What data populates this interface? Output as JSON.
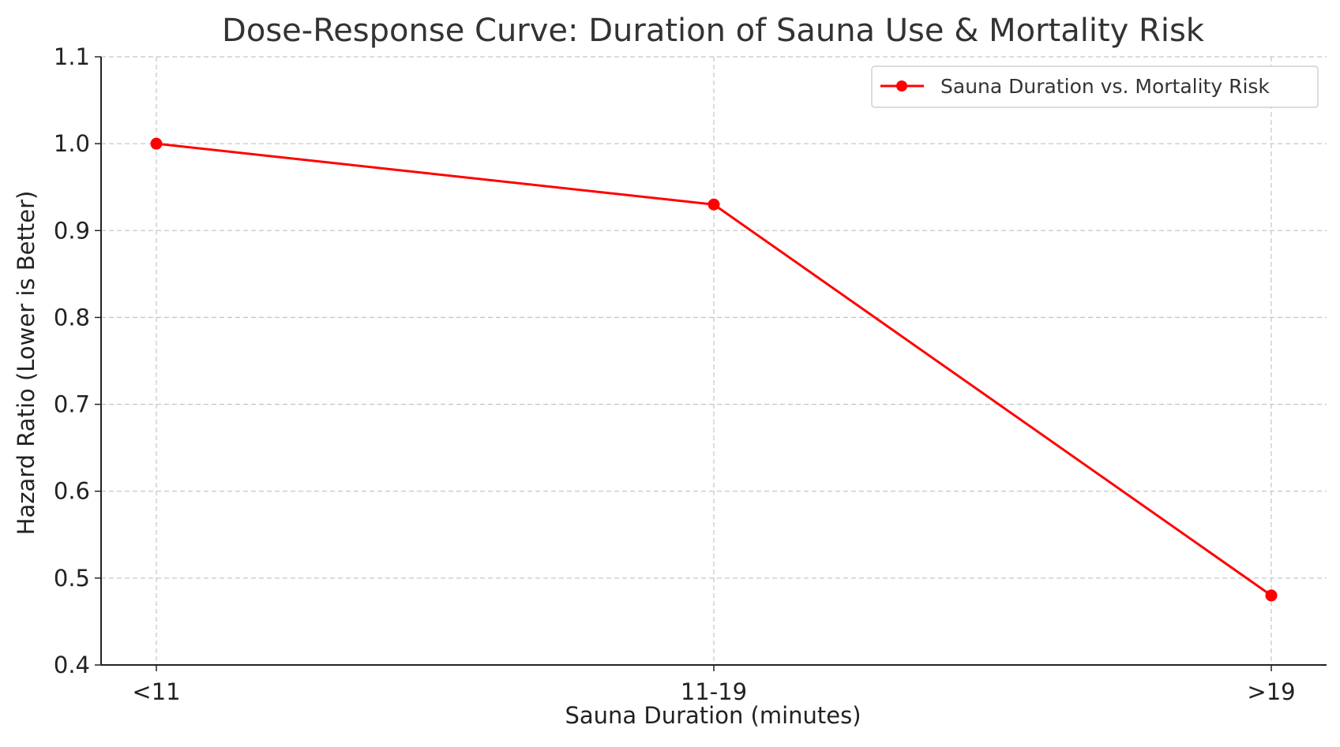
{
  "chart_data": {
    "type": "line",
    "title": "Dose-Response Curve: Duration of Sauna Use & Mortality Risk",
    "xlabel": "Sauna Duration (minutes)",
    "ylabel": "Hazard Ratio (Lower is Better)",
    "categories": [
      "<11",
      "11-19",
      ">19"
    ],
    "series": [
      {
        "name": "Sauna Duration vs. Mortality Risk",
        "values": [
          1.0,
          0.93,
          0.48
        ],
        "color": "#ff0000",
        "marker": "circle"
      }
    ],
    "ylim": [
      0.4,
      1.1
    ],
    "yticks": [
      "0.4",
      "0.5",
      "0.6",
      "0.7",
      "0.8",
      "0.9",
      "1.0",
      "1.1"
    ],
    "grid": true,
    "legend_position": "top-right"
  }
}
